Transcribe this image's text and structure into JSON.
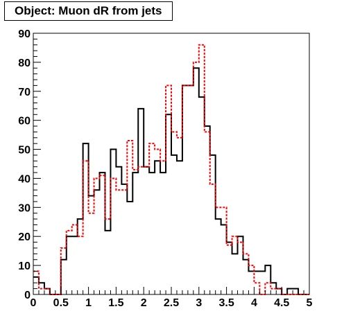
{
  "title": "Object: Muon dR from jets",
  "chart_data": {
    "type": "step-histogram",
    "title": "Object: Muon dR from jets",
    "xlim": [
      0,
      5
    ],
    "ylim": [
      0,
      90
    ],
    "bin_width": 0.1,
    "bin_low_edges": [
      0,
      0.1,
      0.2,
      0.3,
      0.4,
      0.5,
      0.6,
      0.7,
      0.8,
      0.9,
      1.0,
      1.1,
      1.2,
      1.3,
      1.4,
      1.5,
      1.6,
      1.7,
      1.8,
      1.9,
      2.0,
      2.1,
      2.2,
      2.3,
      2.4,
      2.5,
      2.6,
      2.7,
      2.8,
      2.9,
      3.0,
      3.1,
      3.2,
      3.3,
      3.4,
      3.5,
      3.6,
      3.7,
      3.8,
      3.9,
      4.0,
      4.1,
      4.2,
      4.3,
      4.4,
      4.5,
      4.6,
      4.7,
      4.8,
      4.9
    ],
    "x_ticks": [
      "0",
      "0.5",
      "1",
      "1.5",
      "2",
      "2.5",
      "3",
      "3.5",
      "4",
      "4.5",
      "5"
    ],
    "x_tick_values": [
      0,
      0.5,
      1,
      1.5,
      2,
      2.5,
      3,
      3.5,
      4,
      4.5,
      5
    ],
    "y_ticks": [
      "0",
      "10",
      "20",
      "30",
      "40",
      "50",
      "60",
      "70",
      "80",
      "90"
    ],
    "y_tick_values": [
      0,
      10,
      20,
      30,
      40,
      50,
      60,
      70,
      80,
      90
    ],
    "grid": false,
    "series": [
      {
        "color": "#000000",
        "dashed": false,
        "values": [
          6,
          4,
          2,
          0,
          0,
          12,
          20,
          20,
          26,
          52,
          34,
          36,
          42,
          22,
          50,
          44,
          38,
          32,
          42,
          64,
          44,
          42,
          46,
          42,
          62,
          48,
          46,
          72,
          72,
          78,
          68,
          58,
          48,
          26,
          24,
          18,
          14,
          20,
          12,
          8,
          8,
          8,
          10,
          4,
          2,
          0,
          2,
          2,
          0,
          0
        ]
      },
      {
        "color": "#ff0000",
        "dashed": true,
        "values": [
          8,
          2,
          2,
          0,
          0,
          16,
          22,
          24,
          20,
          46,
          28,
          40,
          41,
          26,
          40,
          36,
          36,
          53,
          43,
          44,
          44,
          52,
          50,
          46,
          72,
          56,
          54,
          72,
          72,
          80,
          86,
          56,
          38,
          30,
          30,
          17,
          20,
          18,
          14,
          10,
          4,
          0,
          4,
          2,
          2,
          0,
          0,
          0,
          0,
          0
        ]
      }
    ]
  }
}
